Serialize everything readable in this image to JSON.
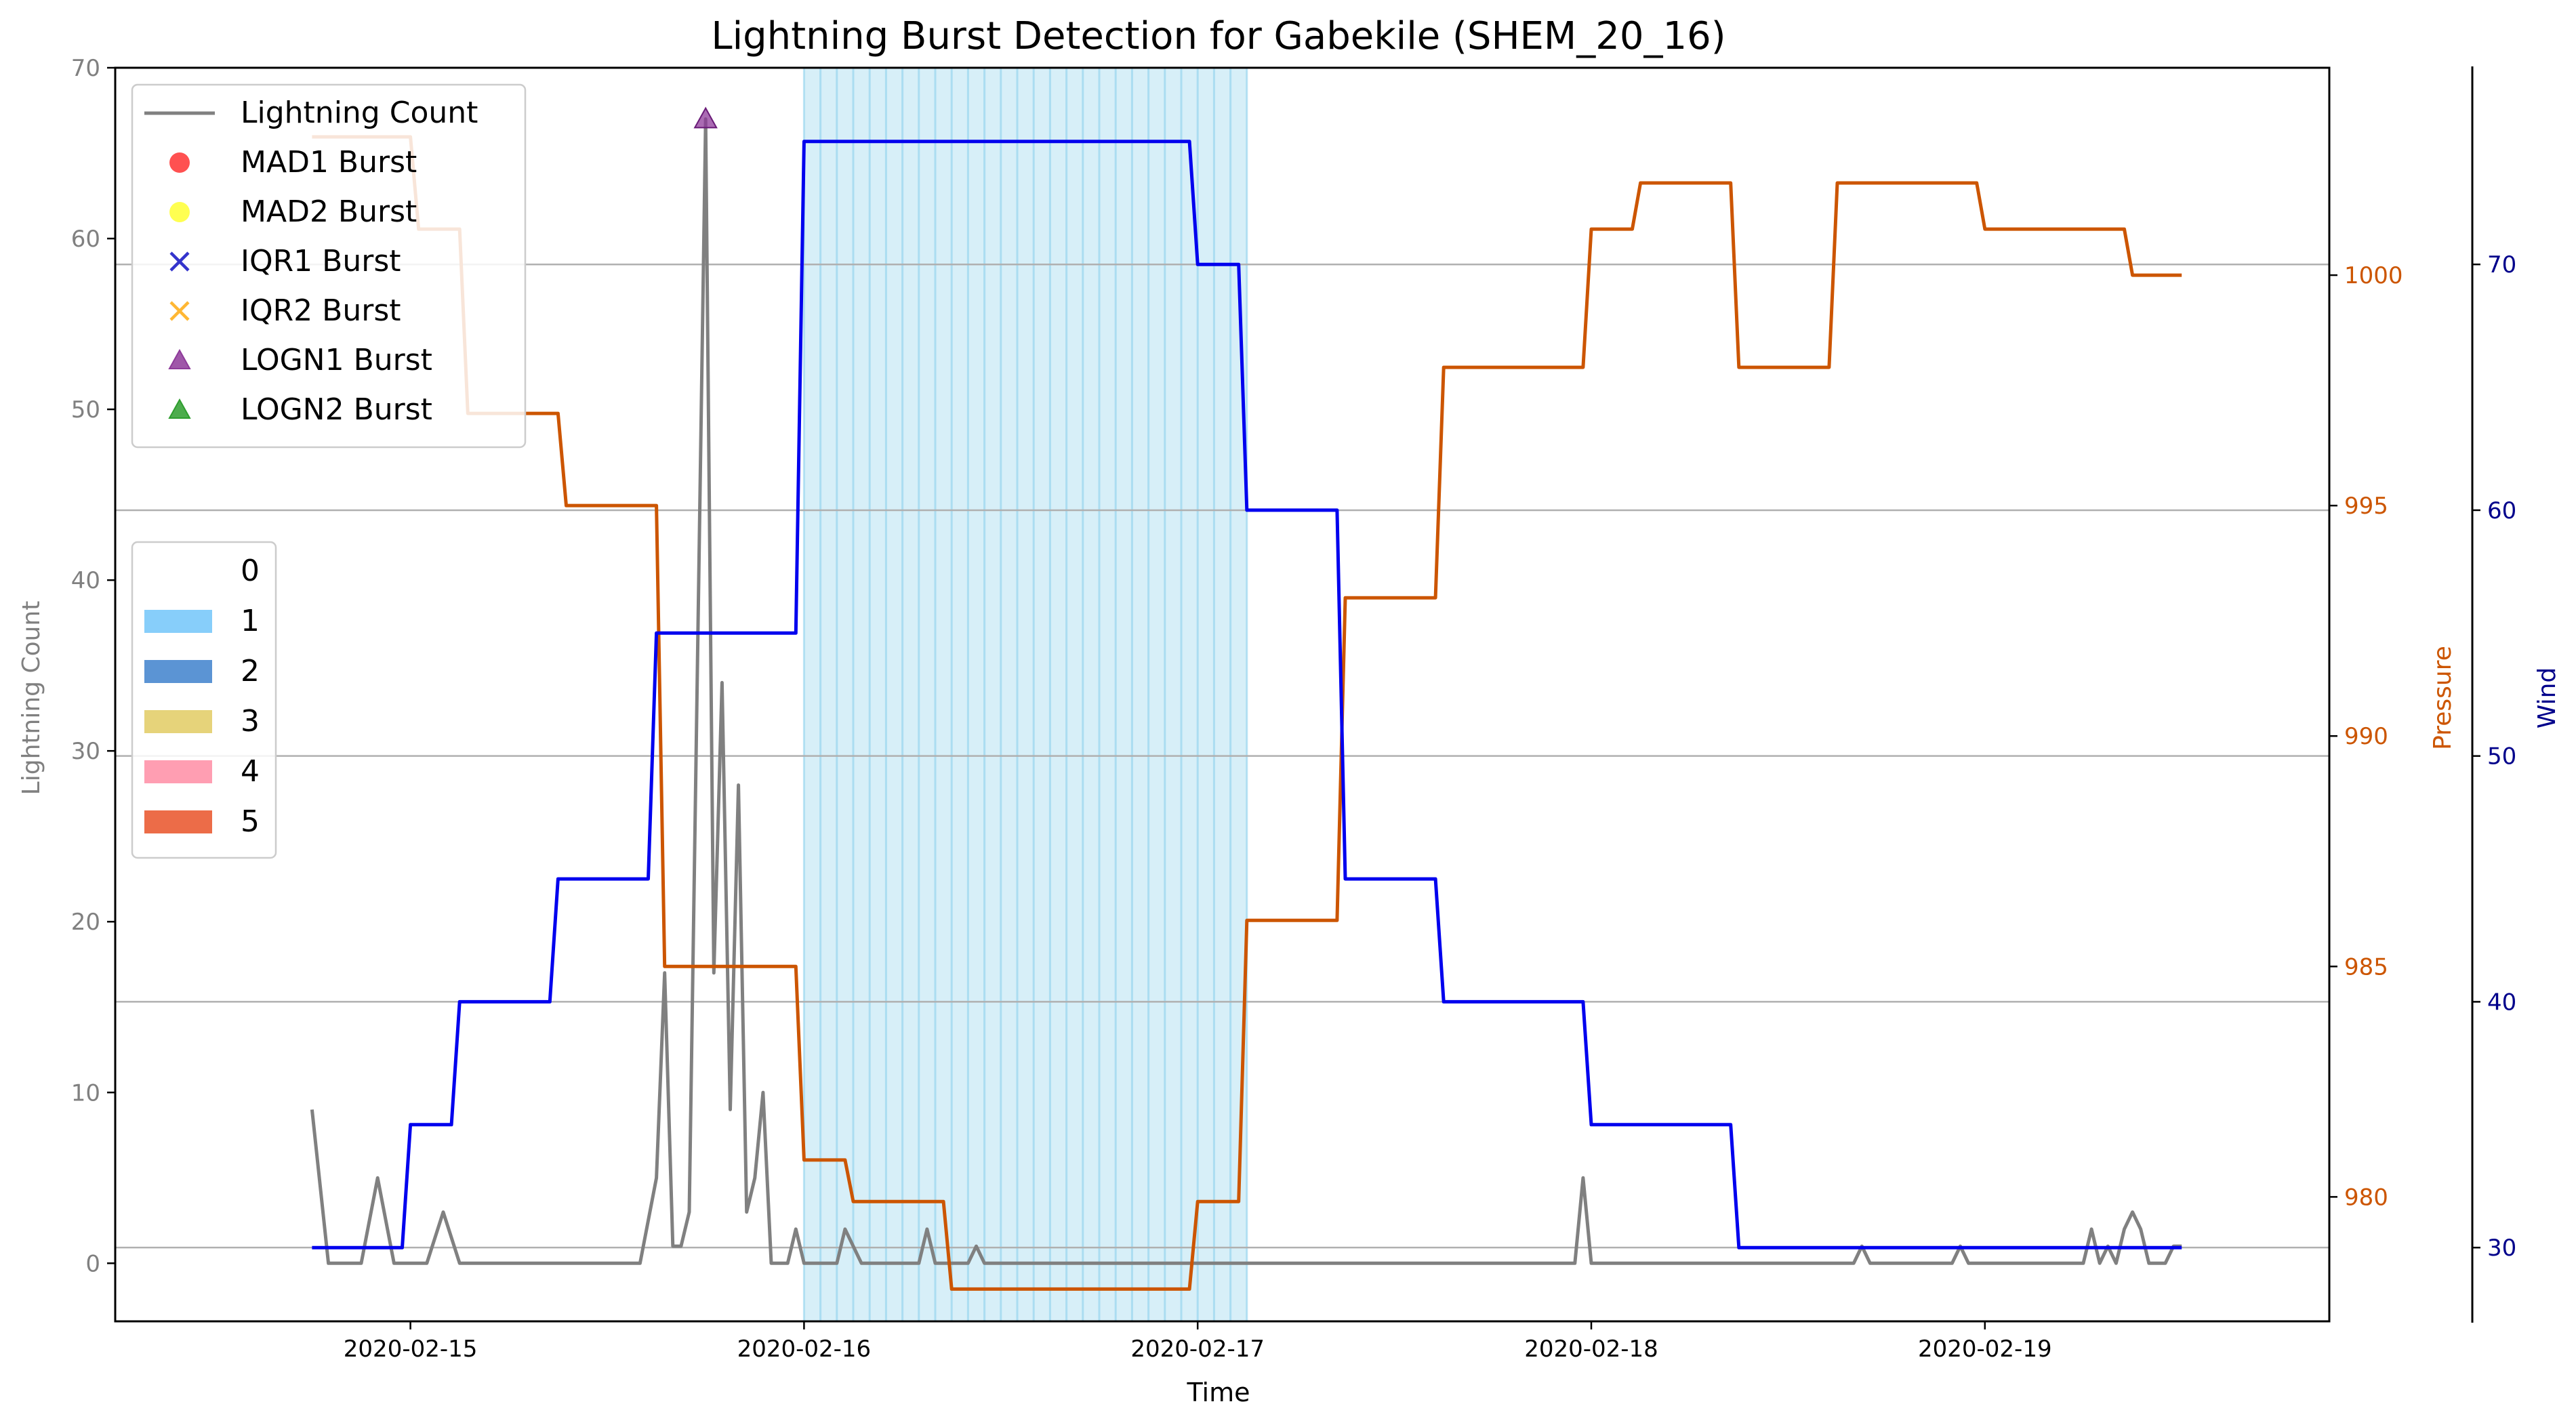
{
  "chart_data": {
    "type": "line",
    "title": "Lightning Burst Detection for Gabekile (SHEM_20_16)",
    "xlabel": "Time",
    "x_ticks": [
      "2020-02-15",
      "2020-02-16",
      "2020-02-17",
      "2020-02-18",
      "2020-02-19"
    ],
    "x_range": [
      "2020-02-14T06:00",
      "2020-02-19T21:00"
    ],
    "axes": {
      "lightning": {
        "label": "Lightning Count",
        "ylim": [
          -3.4,
          70
        ],
        "ticks": [
          0,
          10,
          20,
          30,
          40,
          50,
          60,
          70
        ],
        "color": "#808080"
      },
      "pressure": {
        "label": "Pressure",
        "ylim": [
          977.3,
          1004.5
        ],
        "ticks": [
          980,
          985,
          990,
          995,
          1000
        ],
        "color": "#cc5500"
      },
      "wind": {
        "label": "Wind",
        "ylim": [
          27,
          78
        ],
        "ticks": [
          30,
          40,
          50,
          60,
          70
        ],
        "color": "#00008b"
      }
    },
    "grid": "horizontal (right axes)",
    "series": [
      {
        "name": "Lightning Count",
        "axis": "lightning",
        "color": "#808080",
        "points": [
          [
            "2020-02-14T18:00",
            9
          ],
          [
            "2020-02-14T19:00",
            0
          ],
          [
            "2020-02-14T21:00",
            0
          ],
          [
            "2020-02-14T22:00",
            5
          ],
          [
            "2020-02-14T23:00",
            0
          ],
          [
            "2020-02-15T01:00",
            0
          ],
          [
            "2020-02-15T02:00",
            3
          ],
          [
            "2020-02-15T03:00",
            0
          ],
          [
            "2020-02-15T14:00",
            0
          ],
          [
            "2020-02-15T15:00",
            5
          ],
          [
            "2020-02-15T15:30",
            17
          ],
          [
            "2020-02-15T16:00",
            1
          ],
          [
            "2020-02-15T16:30",
            1
          ],
          [
            "2020-02-15T17:00",
            3
          ],
          [
            "2020-02-15T18:00",
            67
          ],
          [
            "2020-02-15T18:30",
            17
          ],
          [
            "2020-02-15T19:00",
            34
          ],
          [
            "2020-02-15T19:30",
            9
          ],
          [
            "2020-02-15T20:00",
            28
          ],
          [
            "2020-02-15T20:30",
            3
          ],
          [
            "2020-02-15T21:00",
            5
          ],
          [
            "2020-02-15T21:30",
            10
          ],
          [
            "2020-02-15T22:00",
            0
          ],
          [
            "2020-02-15T23:00",
            0
          ],
          [
            "2020-02-15T23:30",
            2
          ],
          [
            "2020-02-16T00:00",
            0
          ],
          [
            "2020-02-16T02:00",
            0
          ],
          [
            "2020-02-16T02:30",
            2
          ],
          [
            "2020-02-16T03:30",
            0
          ],
          [
            "2020-02-16T07:00",
            0
          ],
          [
            "2020-02-16T07:30",
            2
          ],
          [
            "2020-02-16T08:00",
            0
          ],
          [
            "2020-02-16T10:00",
            0
          ],
          [
            "2020-02-16T10:30",
            1
          ],
          [
            "2020-02-16T11:00",
            0
          ],
          [
            "2020-02-17T00:00",
            0
          ],
          [
            "2020-02-17T23:00",
            0
          ],
          [
            "2020-02-17T23:30",
            5
          ],
          [
            "2020-02-18T00:00",
            0
          ],
          [
            "2020-02-18T16:00",
            0
          ],
          [
            "2020-02-18T16:30",
            1
          ],
          [
            "2020-02-18T17:00",
            0
          ],
          [
            "2020-02-18T22:00",
            0
          ],
          [
            "2020-02-18T22:30",
            1
          ],
          [
            "2020-02-18T23:00",
            0
          ],
          [
            "2020-02-19T06:00",
            0
          ],
          [
            "2020-02-19T06:30",
            2
          ],
          [
            "2020-02-19T07:00",
            0
          ],
          [
            "2020-02-19T07:30",
            1
          ],
          [
            "2020-02-19T08:00",
            0
          ],
          [
            "2020-02-19T08:30",
            2
          ],
          [
            "2020-02-19T09:00",
            3
          ],
          [
            "2020-02-19T09:30",
            2
          ],
          [
            "2020-02-19T10:00",
            0
          ],
          [
            "2020-02-19T11:00",
            0
          ],
          [
            "2020-02-19T11:30",
            1
          ],
          [
            "2020-02-19T12:00",
            1
          ]
        ]
      },
      {
        "name": "Pressure",
        "axis": "pressure",
        "color": "#cc5500",
        "step": true,
        "points": [
          [
            "2020-02-14T18:00",
            1003
          ],
          [
            "2020-02-15T00:00",
            1003
          ],
          [
            "2020-02-15T00:30",
            1001
          ],
          [
            "2020-02-15T03:00",
            1001
          ],
          [
            "2020-02-15T03:30",
            997
          ],
          [
            "2020-02-15T09:00",
            997
          ],
          [
            "2020-02-15T09:30",
            995
          ],
          [
            "2020-02-15T15:00",
            995
          ],
          [
            "2020-02-15T15:30",
            985
          ],
          [
            "2020-02-15T23:30",
            985
          ],
          [
            "2020-02-16T00:00",
            980.8
          ],
          [
            "2020-02-16T02:30",
            980.8
          ],
          [
            "2020-02-16T03:00",
            979.9
          ],
          [
            "2020-02-16T08:30",
            979.9
          ],
          [
            "2020-02-16T09:00",
            978
          ],
          [
            "2020-02-16T23:30",
            978
          ],
          [
            "2020-02-17T00:00",
            979.9
          ],
          [
            "2020-02-17T02:30",
            979.9
          ],
          [
            "2020-02-17T03:00",
            986
          ],
          [
            "2020-02-17T08:30",
            986
          ],
          [
            "2020-02-17T09:00",
            993
          ],
          [
            "2020-02-17T14:30",
            993
          ],
          [
            "2020-02-17T15:00",
            998
          ],
          [
            "2020-02-17T23:30",
            998
          ],
          [
            "2020-02-18T00:00",
            1001
          ],
          [
            "2020-02-18T02:30",
            1001
          ],
          [
            "2020-02-18T03:00",
            1002
          ],
          [
            "2020-02-18T08:30",
            1002
          ],
          [
            "2020-02-18T09:00",
            998
          ],
          [
            "2020-02-18T14:30",
            998
          ],
          [
            "2020-02-18T15:00",
            1002
          ],
          [
            "2020-02-18T23:30",
            1002
          ],
          [
            "2020-02-19T00:00",
            1001
          ],
          [
            "2020-02-19T08:30",
            1001
          ],
          [
            "2020-02-19T09:00",
            1000
          ],
          [
            "2020-02-19T12:00",
            1000
          ]
        ]
      },
      {
        "name": "Wind",
        "axis": "wind",
        "color": "#0000ee",
        "step": true,
        "points": [
          [
            "2020-02-14T18:00",
            30
          ],
          [
            "2020-02-14T23:30",
            30
          ],
          [
            "2020-02-15T00:00",
            35
          ],
          [
            "2020-02-15T02:30",
            35
          ],
          [
            "2020-02-15T03:00",
            40
          ],
          [
            "2020-02-15T08:30",
            40
          ],
          [
            "2020-02-15T09:00",
            45
          ],
          [
            "2020-02-15T14:30",
            45
          ],
          [
            "2020-02-15T15:00",
            55
          ],
          [
            "2020-02-15T23:30",
            55
          ],
          [
            "2020-02-16T00:00",
            75
          ],
          [
            "2020-02-16T23:30",
            75
          ],
          [
            "2020-02-17T00:00",
            70
          ],
          [
            "2020-02-17T02:30",
            70
          ],
          [
            "2020-02-17T03:00",
            60
          ],
          [
            "2020-02-17T08:30",
            60
          ],
          [
            "2020-02-17T09:00",
            45
          ],
          [
            "2020-02-17T14:30",
            45
          ],
          [
            "2020-02-17T15:00",
            40
          ],
          [
            "2020-02-17T23:30",
            40
          ],
          [
            "2020-02-18T00:00",
            35
          ],
          [
            "2020-02-18T08:30",
            35
          ],
          [
            "2020-02-18T09:00",
            30
          ],
          [
            "2020-02-19T12:00",
            30
          ]
        ]
      }
    ],
    "shaded_region": {
      "category": "1",
      "start": "2020-02-16T00:00",
      "end": "2020-02-17T03:00",
      "color": "#87ceeb"
    },
    "markers": [
      {
        "series": "LOGN1 Burst",
        "x": "2020-02-15T18:00",
        "y": 67
      }
    ],
    "legend_top": {
      "placement": "upper-left",
      "entries": [
        {
          "label": "Lightning Count",
          "marker": "line",
          "color": "#808080"
        },
        {
          "label": "MAD1 Burst",
          "marker": "circle",
          "color": "#ff3333"
        },
        {
          "label": "MAD2 Burst",
          "marker": "circle",
          "color": "#ffff33"
        },
        {
          "label": "IQR1 Burst",
          "marker": "x",
          "color": "#3333cc"
        },
        {
          "label": "IQR2 Burst",
          "marker": "x",
          "color": "#ffb733"
        },
        {
          "label": "LOGN1 Burst",
          "marker": "triangle",
          "color": "#8e3a9a"
        },
        {
          "label": "LOGN2 Burst",
          "marker": "triangle",
          "color": "#2e9e2e"
        }
      ]
    },
    "legend_categories": {
      "placement": "center-left",
      "entries": [
        {
          "label": "0",
          "color": "#ffffff"
        },
        {
          "label": "1",
          "color": "#87cefa"
        },
        {
          "label": "2",
          "color": "#5b94d4"
        },
        {
          "label": "3",
          "color": "#e6d37a"
        },
        {
          "label": "4",
          "color": "#ff9eb2"
        },
        {
          "label": "5",
          "color": "#ec6c48"
        }
      ]
    }
  }
}
